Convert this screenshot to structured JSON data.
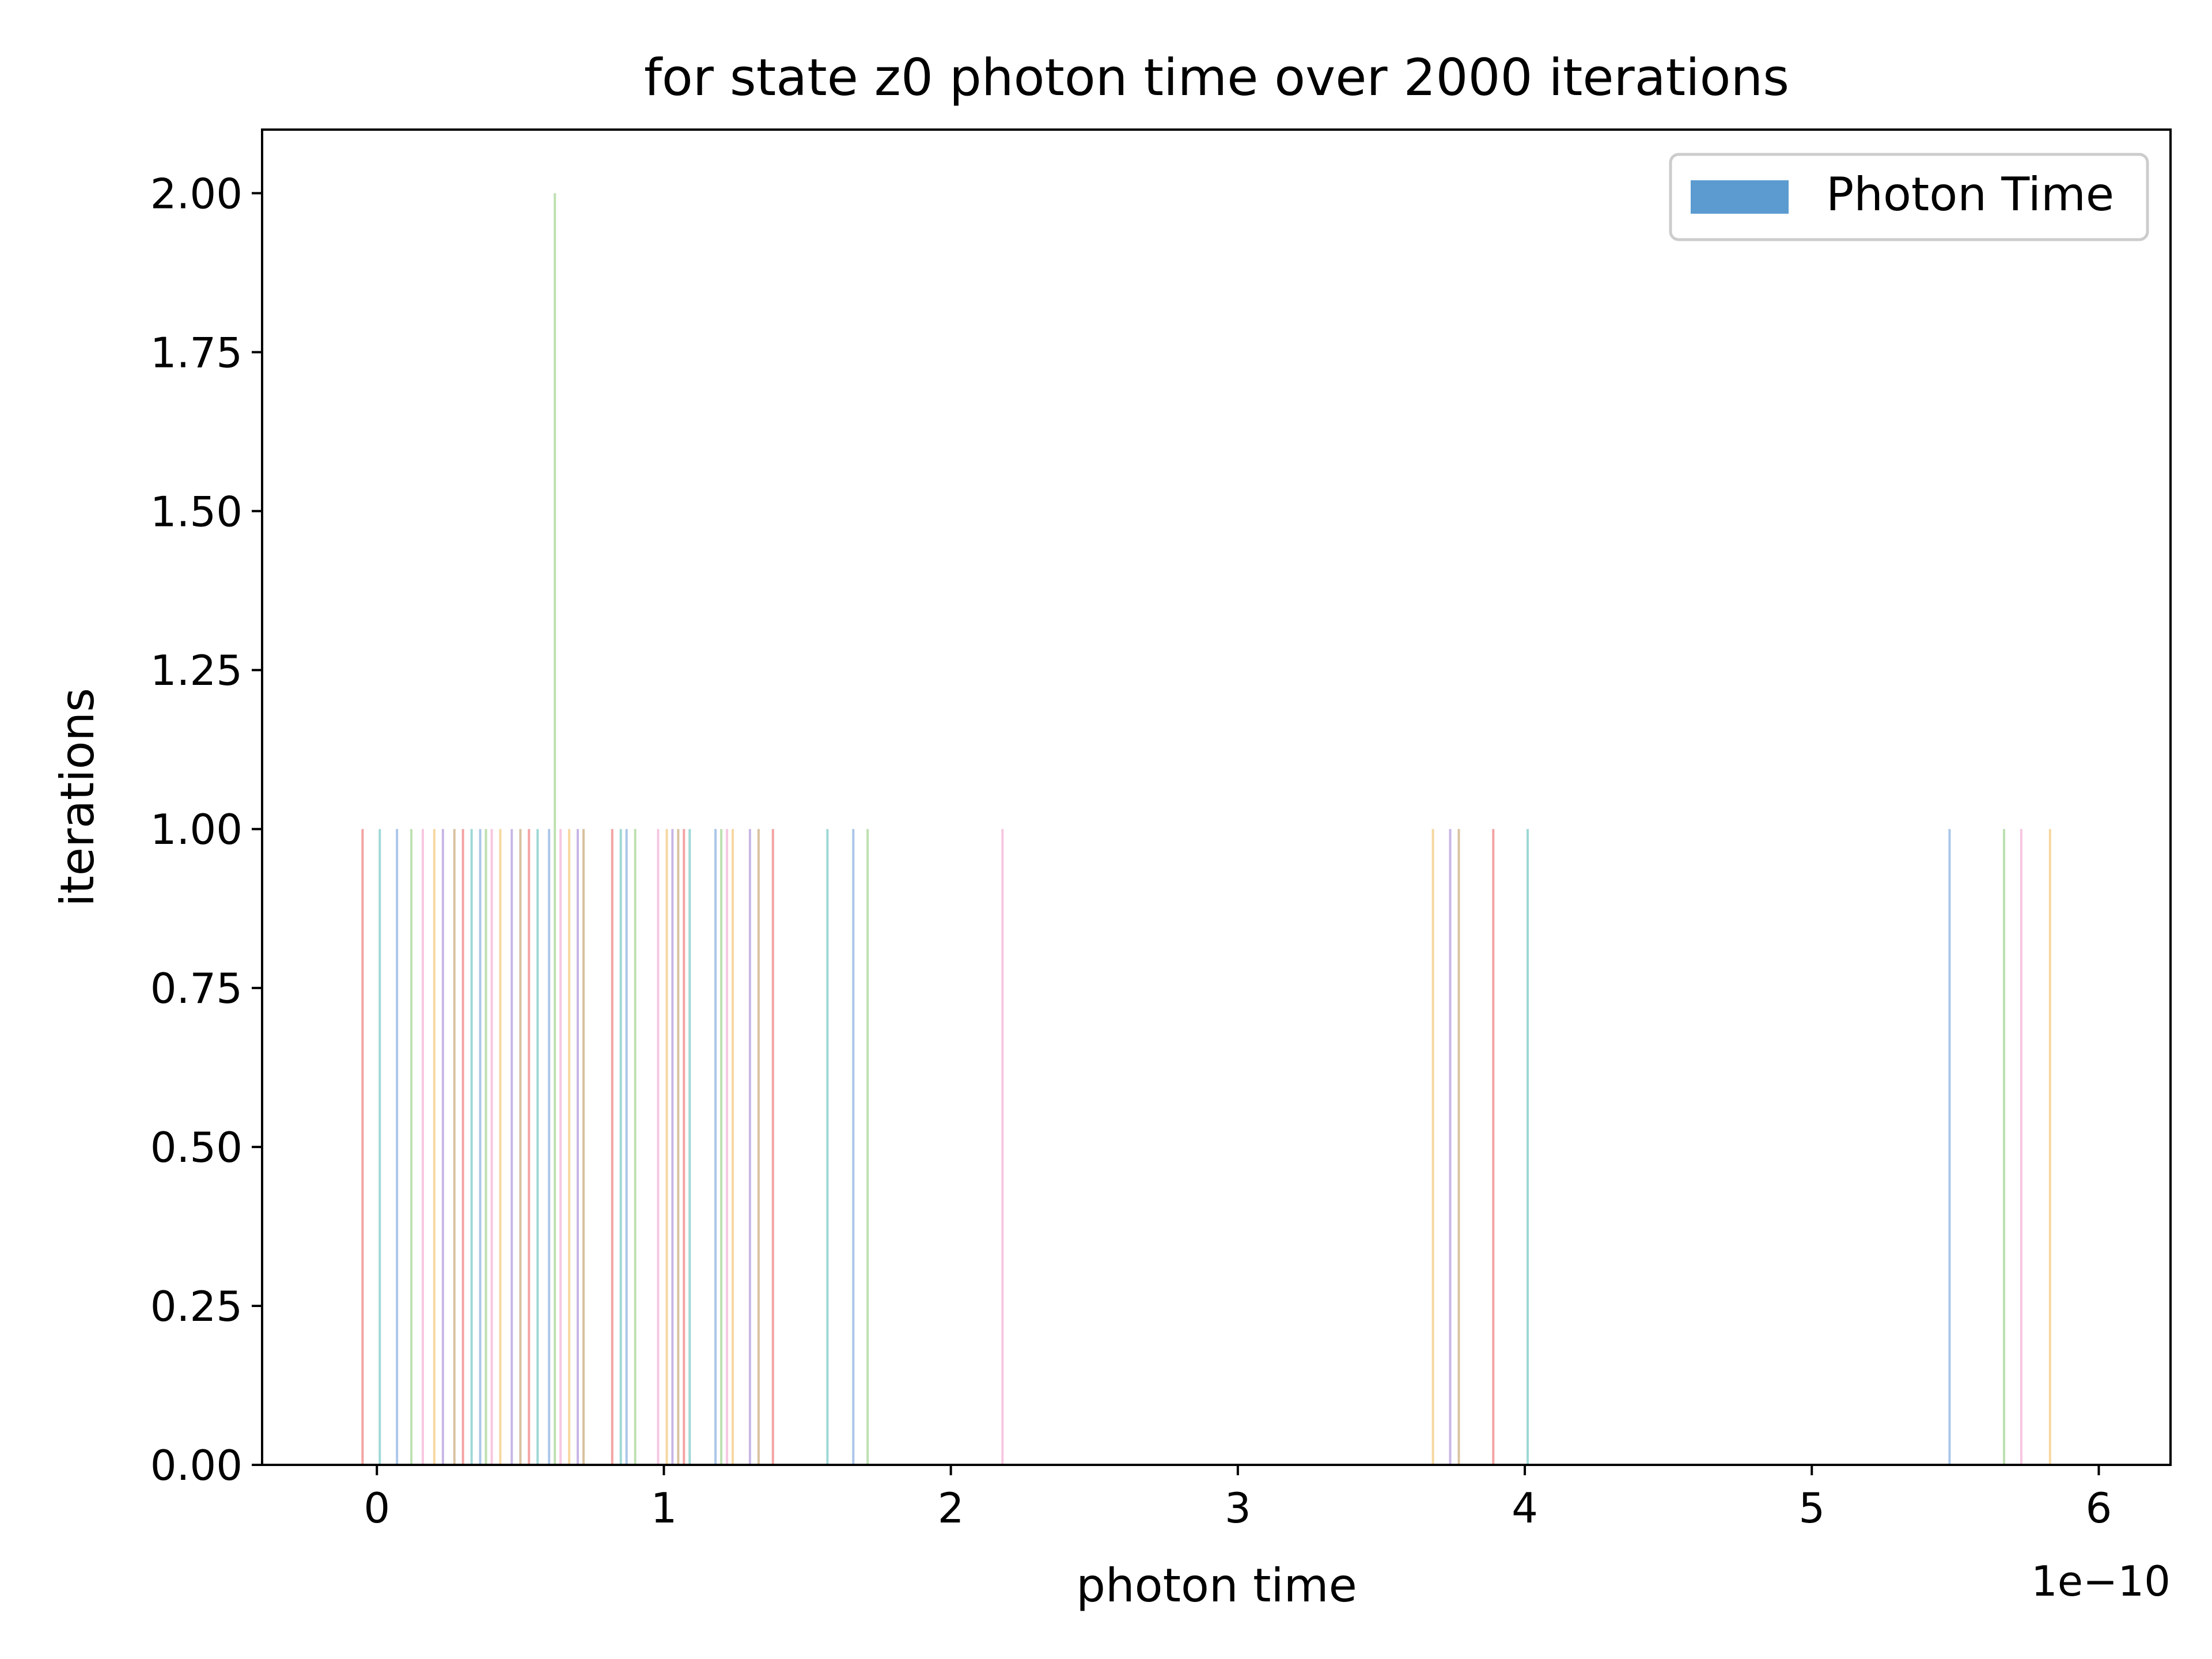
{
  "chart_data": {
    "type": "bar",
    "title": "for state z0 photon time over 2000 iterations",
    "xlabel": "photon time",
    "ylabel": "iterations",
    "x_offset_label": "1e−10",
    "xlim": [
      -0.4,
      6.25
    ],
    "ylim": [
      0,
      2.1
    ],
    "x_ticks": [
      0,
      1,
      2,
      3,
      4,
      5,
      6
    ],
    "x_tick_labels": [
      "0",
      "1",
      "2",
      "3",
      "4",
      "5",
      "6"
    ],
    "y_ticks": [
      0,
      0.25,
      0.5,
      0.75,
      1.0,
      1.25,
      1.5,
      1.75,
      2.0
    ],
    "y_tick_labels": [
      "0.00",
      "0.25",
      "0.50",
      "0.75",
      "1.00",
      "1.25",
      "1.50",
      "1.75",
      "2.00"
    ],
    "grid": false,
    "legend": {
      "position": "top-right",
      "entries": [
        {
          "name": "Photon Time",
          "color": "#5b9bd0"
        }
      ]
    },
    "series": [
      {
        "name": "Photon Time",
        "x": [
          -0.05,
          0.01,
          0.07,
          0.12,
          0.16,
          0.2,
          0.23,
          0.27,
          0.3,
          0.33,
          0.36,
          0.38,
          0.4,
          0.43,
          0.47,
          0.5,
          0.53,
          0.56,
          0.6,
          0.62,
          0.64,
          0.67,
          0.7,
          0.72,
          0.82,
          0.85,
          0.87,
          0.9,
          0.98,
          1.01,
          1.03,
          1.05,
          1.07,
          1.09,
          1.18,
          1.2,
          1.22,
          1.24,
          1.3,
          1.33,
          1.38,
          1.57,
          1.66,
          1.71,
          2.18,
          3.68,
          3.74,
          3.77,
          3.89,
          4.01,
          5.48,
          5.67,
          5.73,
          5.83
        ],
        "values": [
          1,
          1,
          1,
          1,
          1,
          1,
          1,
          1,
          1,
          1,
          1,
          1,
          1,
          1,
          1,
          1,
          1,
          1,
          1,
          2,
          1,
          1,
          1,
          1,
          1,
          1,
          1,
          1,
          1,
          1,
          1,
          1,
          1,
          1,
          1,
          1,
          1,
          1,
          1,
          1,
          1,
          1,
          1,
          1,
          1,
          1,
          1,
          1,
          1,
          1,
          1,
          1,
          1,
          1
        ]
      }
    ],
    "colors": [
      "#f4a3a3",
      "#9ed8d6",
      "#aac6e9",
      "#bde0b0",
      "#f7c6e1",
      "#f7d7a0",
      "#c7b6e6",
      "#d9c2a0"
    ]
  }
}
